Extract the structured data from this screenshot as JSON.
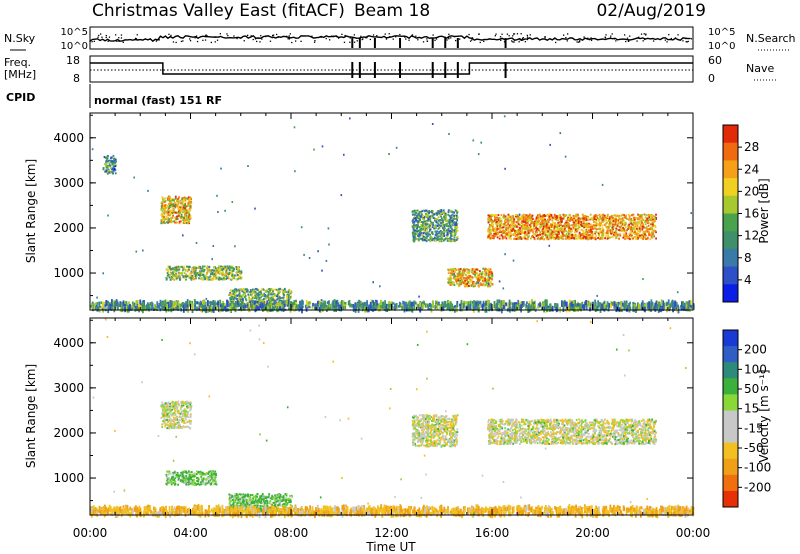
{
  "header": {
    "station": "Christmas Valley East (fitACF)",
    "beam": "Beam 18",
    "date": "02/Aug/2019"
  },
  "noise_panel": {
    "left_label": "N.Sky",
    "right_label": "N.Search",
    "left_ticks": [
      "10^5",
      "10^0"
    ],
    "right_ticks": [
      "10^5",
      "10^0"
    ]
  },
  "freq_panel": {
    "left_label_line1": "Freq.",
    "left_label_line2": "[MHz]",
    "right_label": "Nave",
    "left_ticks": [
      "18",
      "8"
    ],
    "right_ticks": [
      "60",
      "0"
    ]
  },
  "cpid": {
    "label": "CPID",
    "value": "normal (fast) 151 RF"
  },
  "x_axis": {
    "ticks": [
      "00:00",
      "04:00",
      "08:00",
      "12:00",
      "16:00",
      "20:00",
      "00:00"
    ],
    "label": "Time UT"
  },
  "power_panel": {
    "y_label": "Slant Range [km]",
    "y_ticks": [
      "1000",
      "2000",
      "3000",
      "4000"
    ],
    "colorbar_label": "Power [dB]",
    "colorbar_ticks": [
      "4",
      "8",
      "12",
      "16",
      "20",
      "24",
      "28"
    ],
    "colorbar_colors": [
      "#0a1ee6",
      "#2d4fc8",
      "#3a7aa8",
      "#3f8f6a",
      "#4aa34a",
      "#a8c830",
      "#f0d020",
      "#f5a018",
      "#f06a10",
      "#e02a08"
    ]
  },
  "velocity_panel": {
    "y_label": "Slant Range [km]",
    "y_ticks": [
      "1000",
      "2000",
      "3000",
      "4000"
    ],
    "colorbar_label": "Velocity [m s⁻¹]",
    "colorbar_ticks": [
      "200",
      "100",
      "50",
      "15",
      "-15",
      "-50",
      "-100",
      "-200"
    ],
    "colorbar_colors": [
      "#1a3ad6",
      "#2f5fc4",
      "#2e8a7a",
      "#3cb03c",
      "#8ad838",
      "#c8c8c8",
      "#c8c8c8",
      "#f2c020",
      "#f0a018",
      "#f07010",
      "#e83008"
    ]
  },
  "chart_data": [
    {
      "type": "heatmap",
      "title": "Power [dB]",
      "xlabel": "Time UT",
      "ylabel": "Slant Range [km]",
      "xlim": [
        0,
        24
      ],
      "ylim": [
        180,
        4550
      ],
      "colorbar_range": [
        0,
        32
      ],
      "features": [
        {
          "t": [
            0.5,
            1.0
          ],
          "r": [
            3200,
            3600
          ],
          "value": 10
        },
        {
          "t": [
            2.8,
            4.0
          ],
          "r": [
            2100,
            2700
          ],
          "value": 22
        },
        {
          "t": [
            3.0,
            6.0
          ],
          "r": [
            850,
            1150
          ],
          "value": 16
        },
        {
          "t": [
            5.5,
            8.0
          ],
          "r": [
            250,
            650
          ],
          "value": 14
        },
        {
          "t": [
            12.8,
            14.6
          ],
          "r": [
            1700,
            2400
          ],
          "value": 12
        },
        {
          "t": [
            14.2,
            16.0
          ],
          "r": [
            700,
            1100
          ],
          "value": 22
        },
        {
          "t": [
            15.8,
            22.5
          ],
          "r": [
            1750,
            2300
          ],
          "value": 24
        },
        {
          "t": [
            0.0,
            24.0
          ],
          "r": [
            180,
            350
          ],
          "value": 12
        }
      ]
    },
    {
      "type": "heatmap",
      "title": "Velocity [m s⁻¹]",
      "xlabel": "Time UT",
      "ylabel": "Slant Range [km]",
      "xlim": [
        0,
        24
      ],
      "ylim": [
        180,
        4550
      ],
      "colorbar_range": [
        -250,
        250
      ],
      "features": [
        {
          "t": [
            2.8,
            4.0
          ],
          "r": [
            2100,
            2700
          ],
          "value": 0
        },
        {
          "t": [
            3.0,
            5.0
          ],
          "r": [
            850,
            1150
          ],
          "value": 40
        },
        {
          "t": [
            5.5,
            8.0
          ],
          "r": [
            250,
            650
          ],
          "value": 40
        },
        {
          "t": [
            12.8,
            14.6
          ],
          "r": [
            1700,
            2400
          ],
          "value": 0
        },
        {
          "t": [
            15.8,
            22.5
          ],
          "r": [
            1750,
            2300
          ],
          "value": 0
        },
        {
          "t": [
            0.0,
            24.0
          ],
          "r": [
            180,
            350
          ],
          "value": -40
        }
      ]
    }
  ]
}
